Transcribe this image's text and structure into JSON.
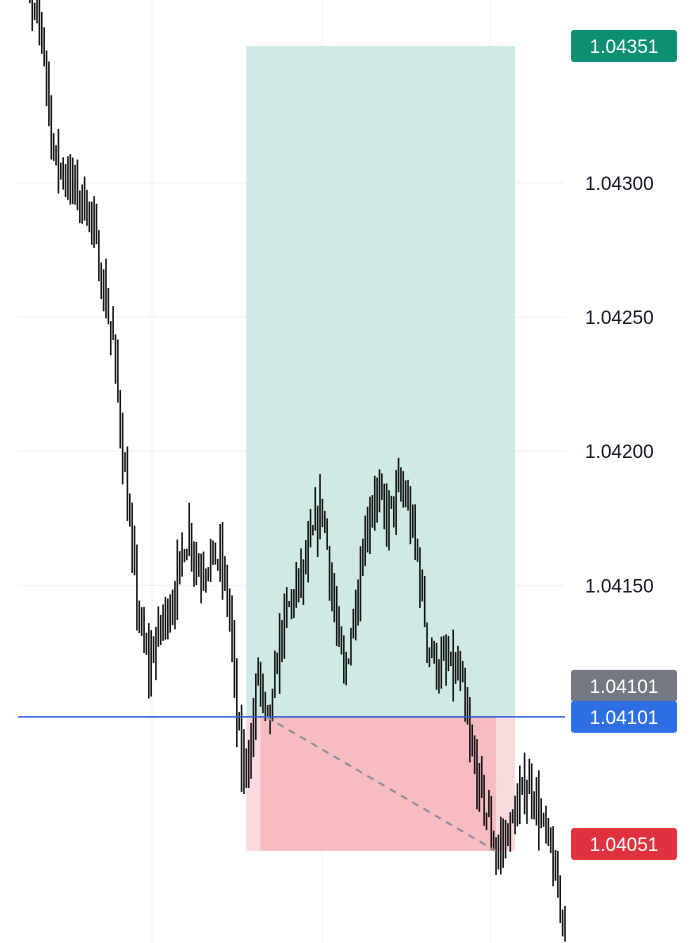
{
  "chart_data": {
    "type": "bar",
    "style": "ohlc-bars",
    "ylim": [
      1.04005,
      1.04395
    ],
    "y_ticks": [
      "1.04300",
      "1.04250",
      "1.04200",
      "1.04150"
    ],
    "grid": true,
    "colors": {
      "bars": "#111111",
      "grid": "#eef0f3",
      "profit_zone": "#cfeae4",
      "loss_zone": "#f7bcc2",
      "entry_line": "#2a5bd7",
      "trade_line": "#8a8f99",
      "tp_badge": "#0d8f74",
      "entry_badge": "#2f6fe6",
      "last_badge": "#757880",
      "sl_badge": "#e0323e",
      "axis_text": "#131722"
    },
    "price_labels": {
      "take_profit": "1.04351",
      "last_price": "1.04101",
      "entry": "1.04101",
      "stop_loss": "1.04051"
    },
    "levels": {
      "take_profit": 1.04351,
      "entry": 1.04101,
      "stop_loss": 1.04051,
      "exit_price": 1.04051
    },
    "position": {
      "start_index": 96,
      "end_index": 209,
      "exit_index": 201,
      "entry_price": 1.04101
    },
    "waypoints": [
      [
        0,
        1.04389
      ],
      [
        5,
        1.04365
      ],
      [
        10,
        1.04358
      ],
      [
        15,
        1.0431
      ],
      [
        22,
        1.043
      ],
      [
        30,
        1.0429
      ],
      [
        36,
        1.0426
      ],
      [
        40,
        1.0424
      ],
      [
        44,
        1.042
      ],
      [
        48,
        1.0416
      ],
      [
        52,
        1.0413
      ],
      [
        55,
        1.0412
      ],
      [
        60,
        1.04135
      ],
      [
        65,
        1.04145
      ],
      [
        70,
        1.04165
      ],
      [
        72,
        1.0417
      ],
      [
        76,
        1.04155
      ],
      [
        80,
        1.0416
      ],
      [
        85,
        1.0416
      ],
      [
        89,
        1.0414
      ],
      [
        92,
        1.041
      ],
      [
        94,
        1.04082
      ],
      [
        98,
        1.0409
      ],
      [
        101,
        1.0412
      ],
      [
        104,
        1.04098
      ],
      [
        107,
        1.04105
      ],
      [
        110,
        1.0413
      ],
      [
        115,
        1.04145
      ],
      [
        120,
        1.04155
      ],
      [
        126,
        1.04175
      ],
      [
        128,
        1.0418
      ],
      [
        133,
        1.0414
      ],
      [
        137,
        1.04115
      ],
      [
        143,
        1.0415
      ],
      [
        146,
        1.0417
      ],
      [
        150,
        1.04185
      ],
      [
        155,
        1.04175
      ],
      [
        160,
        1.04185
      ],
      [
        163,
        1.04183
      ],
      [
        168,
        1.0416
      ],
      [
        172,
        1.0413
      ],
      [
        176,
        1.0412
      ],
      [
        181,
        1.0412
      ],
      [
        186,
        1.04115
      ],
      [
        190,
        1.0409
      ],
      [
        194,
        1.04075
      ],
      [
        198,
        1.04062
      ],
      [
        201,
        1.0405
      ],
      [
        204,
        1.04055
      ],
      [
        208,
        1.04062
      ],
      [
        213,
        1.04075
      ],
      [
        216,
        1.04075
      ],
      [
        220,
        1.04062
      ],
      [
        224,
        1.0405
      ],
      [
        226,
        1.0404
      ],
      [
        228,
        1.04028
      ],
      [
        230,
        1.0403
      ]
    ],
    "bar_count": 231
  }
}
